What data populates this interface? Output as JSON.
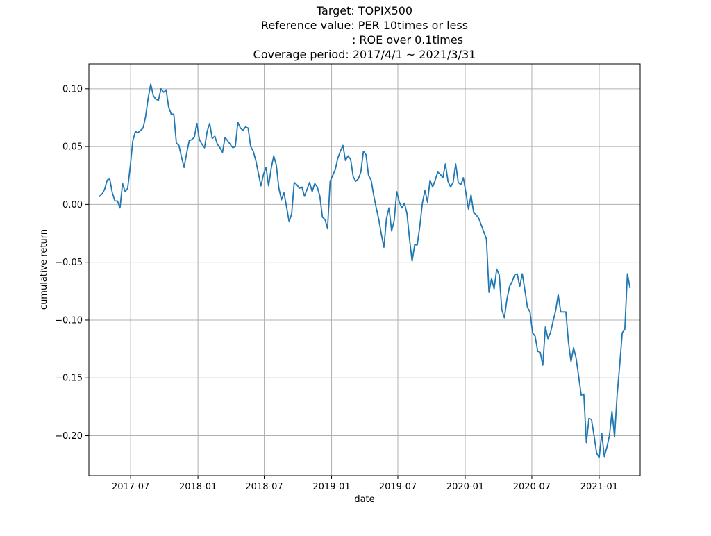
{
  "chart_data": {
    "type": "line",
    "title": "Target: TOPIX500\nReference value: PER 10times or less\n                         : ROE over 0.1times\nCoverage period: 2017/4/1 ~ 2021/3/31",
    "title_lines": [
      "Target: TOPIX500",
      "Reference value: PER 10times or less",
      ": ROE over 0.1times",
      "Coverage period: 2017/4/1 ~ 2021/3/31"
    ],
    "xlabel": "date",
    "ylabel": "cumulative return",
    "x_range": [
      "2017-03-09",
      "2021-04-23"
    ],
    "ylim": [
      -0.2345,
      0.1215
    ],
    "grid": true,
    "legend": "none",
    "x_ticks": [
      {
        "date": "2017-07-01",
        "label": "2017-07"
      },
      {
        "date": "2018-01-01",
        "label": "2018-01"
      },
      {
        "date": "2018-07-01",
        "label": "2018-07"
      },
      {
        "date": "2019-01-01",
        "label": "2019-01"
      },
      {
        "date": "2019-07-01",
        "label": "2019-07"
      },
      {
        "date": "2020-01-01",
        "label": "2020-01"
      },
      {
        "date": "2020-07-01",
        "label": "2020-07"
      },
      {
        "date": "2021-01-01",
        "label": "2021-01"
      }
    ],
    "y_ticks": [
      {
        "value": 0.1,
        "label": "0.10"
      },
      {
        "value": 0.05,
        "label": "0.05"
      },
      {
        "value": 0.0,
        "label": "0.00"
      },
      {
        "value": -0.05,
        "label": "−0.05"
      },
      {
        "value": -0.1,
        "label": "−0.10"
      },
      {
        "value": -0.15,
        "label": "−0.15"
      },
      {
        "value": -0.2,
        "label": "−0.20"
      }
    ],
    "colors": {
      "line": "#1f77b4",
      "grid": "#b0b0b0",
      "axes": "#000000"
    },
    "series": [
      {
        "x": [
          "2017-04-07",
          "2017-04-14",
          "2017-04-21",
          "2017-04-28",
          "2017-05-05",
          "2017-05-12",
          "2017-05-19",
          "2017-05-26",
          "2017-06-02",
          "2017-06-09",
          "2017-06-16",
          "2017-06-23",
          "2017-06-30",
          "2017-07-07",
          "2017-07-14",
          "2017-07-21",
          "2017-07-28",
          "2017-08-04",
          "2017-08-11",
          "2017-08-18",
          "2017-08-25",
          "2017-09-01",
          "2017-09-08",
          "2017-09-15",
          "2017-09-22",
          "2017-09-29",
          "2017-10-06",
          "2017-10-13",
          "2017-10-20",
          "2017-10-27",
          "2017-11-03",
          "2017-11-10",
          "2017-11-17",
          "2017-11-24",
          "2017-12-01",
          "2017-12-08",
          "2017-12-15",
          "2017-12-22",
          "2017-12-29",
          "2018-01-05",
          "2018-01-12",
          "2018-01-19",
          "2018-01-26",
          "2018-02-02",
          "2018-02-09",
          "2018-02-16",
          "2018-02-23",
          "2018-03-02",
          "2018-03-09",
          "2018-03-16",
          "2018-03-23",
          "2018-03-30",
          "2018-04-06",
          "2018-04-13",
          "2018-04-20",
          "2018-04-27",
          "2018-05-04",
          "2018-05-11",
          "2018-05-18",
          "2018-05-25",
          "2018-06-01",
          "2018-06-08",
          "2018-06-15",
          "2018-06-22",
          "2018-06-29",
          "2018-07-06",
          "2018-07-13",
          "2018-07-20",
          "2018-07-27",
          "2018-08-03",
          "2018-08-10",
          "2018-08-17",
          "2018-08-24",
          "2018-08-31",
          "2018-09-07",
          "2018-09-14",
          "2018-09-21",
          "2018-09-28",
          "2018-10-05",
          "2018-10-12",
          "2018-10-19",
          "2018-10-26",
          "2018-11-02",
          "2018-11-09",
          "2018-11-16",
          "2018-11-23",
          "2018-11-30",
          "2018-12-07",
          "2018-12-14",
          "2018-12-21",
          "2018-12-28",
          "2019-01-04",
          "2019-01-11",
          "2019-01-18",
          "2019-01-25",
          "2019-02-01",
          "2019-02-08",
          "2019-02-15",
          "2019-02-22",
          "2019-03-01",
          "2019-03-08",
          "2019-03-15",
          "2019-03-22",
          "2019-03-29",
          "2019-04-05",
          "2019-04-12",
          "2019-04-19",
          "2019-04-26",
          "2019-05-03",
          "2019-05-10",
          "2019-05-17",
          "2019-05-24",
          "2019-05-31",
          "2019-06-07",
          "2019-06-14",
          "2019-06-21",
          "2019-06-28",
          "2019-07-05",
          "2019-07-12",
          "2019-07-19",
          "2019-07-26",
          "2019-08-02",
          "2019-08-09",
          "2019-08-16",
          "2019-08-23",
          "2019-08-30",
          "2019-09-06",
          "2019-09-13",
          "2019-09-20",
          "2019-09-27",
          "2019-10-04",
          "2019-10-11",
          "2019-10-18",
          "2019-10-25",
          "2019-11-01",
          "2019-11-08",
          "2019-11-15",
          "2019-11-22",
          "2019-11-29",
          "2019-12-06",
          "2019-12-13",
          "2019-12-20",
          "2019-12-27",
          "2020-01-03",
          "2020-01-10",
          "2020-01-17",
          "2020-01-24",
          "2020-01-31",
          "2020-02-07",
          "2020-02-14",
          "2020-02-21",
          "2020-02-28",
          "2020-03-06",
          "2020-03-13",
          "2020-03-20",
          "2020-03-27",
          "2020-04-03",
          "2020-04-10",
          "2020-04-17",
          "2020-04-24",
          "2020-05-01",
          "2020-05-08",
          "2020-05-15",
          "2020-05-22",
          "2020-05-29",
          "2020-06-05",
          "2020-06-12",
          "2020-06-19",
          "2020-06-26",
          "2020-07-03",
          "2020-07-10",
          "2020-07-17",
          "2020-07-24",
          "2020-07-31",
          "2020-08-07",
          "2020-08-14",
          "2020-08-21",
          "2020-08-28",
          "2020-09-04",
          "2020-09-11",
          "2020-09-18",
          "2020-09-25",
          "2020-10-02",
          "2020-10-09",
          "2020-10-16",
          "2020-10-23",
          "2020-10-30",
          "2020-11-06",
          "2020-11-13",
          "2020-11-20",
          "2020-11-27",
          "2020-12-04",
          "2020-12-11",
          "2020-12-18",
          "2020-12-25",
          "2021-01-01",
          "2021-01-08",
          "2021-01-15",
          "2021-01-22",
          "2021-01-29",
          "2021-02-05",
          "2021-02-12",
          "2021-02-19",
          "2021-02-26",
          "2021-03-05",
          "2021-03-12",
          "2021-03-19",
          "2021-03-26"
        ],
        "y": [
          0.007,
          0.009,
          0.013,
          0.021,
          0.022,
          0.01,
          0.003,
          0.003,
          -0.003,
          0.018,
          0.011,
          0.014,
          0.033,
          0.055,
          0.063,
          0.062,
          0.064,
          0.066,
          0.076,
          0.092,
          0.104,
          0.094,
          0.091,
          0.09,
          0.1,
          0.097,
          0.099,
          0.084,
          0.078,
          0.078,
          0.053,
          0.051,
          0.041,
          0.032,
          0.044,
          0.055,
          0.056,
          0.058,
          0.07,
          0.056,
          0.052,
          0.049,
          0.063,
          0.07,
          0.057,
          0.059,
          0.052,
          0.049,
          0.045,
          0.058,
          0.055,
          0.052,
          0.049,
          0.05,
          0.071,
          0.066,
          0.064,
          0.067,
          0.066,
          0.05,
          0.046,
          0.038,
          0.027,
          0.016,
          0.026,
          0.032,
          0.016,
          0.031,
          0.042,
          0.034,
          0.014,
          0.004,
          0.01,
          -0.002,
          -0.015,
          -0.008,
          0.019,
          0.017,
          0.014,
          0.015,
          0.007,
          0.013,
          0.019,
          0.011,
          0.018,
          0.015,
          0.007,
          -0.011,
          -0.013,
          -0.021,
          0.02,
          0.025,
          0.03,
          0.04,
          0.046,
          0.051,
          0.038,
          0.042,
          0.039,
          0.024,
          0.02,
          0.022,
          0.028,
          0.046,
          0.043,
          0.025,
          0.021,
          0.008,
          -0.003,
          -0.013,
          -0.026,
          -0.037,
          -0.012,
          -0.003,
          -0.023,
          -0.014,
          0.011,
          0.002,
          -0.003,
          0.001,
          -0.008,
          -0.03,
          -0.049,
          -0.035,
          -0.035,
          -0.019,
          0.001,
          0.012,
          0.002,
          0.021,
          0.015,
          0.021,
          0.028,
          0.026,
          0.023,
          0.035,
          0.02,
          0.015,
          0.019,
          0.035,
          0.019,
          0.017,
          0.023,
          0.01,
          -0.004,
          0.008,
          -0.007,
          -0.009,
          -0.012,
          -0.018,
          -0.024,
          -0.03,
          -0.076,
          -0.064,
          -0.073,
          -0.056,
          -0.061,
          -0.091,
          -0.098,
          -0.082,
          -0.071,
          -0.067,
          -0.061,
          -0.06,
          -0.071,
          -0.06,
          -0.074,
          -0.089,
          -0.093,
          -0.111,
          -0.114,
          -0.127,
          -0.128,
          -0.139,
          -0.106,
          -0.116,
          -0.111,
          -0.101,
          -0.092,
          -0.078,
          -0.093,
          -0.093,
          -0.093,
          -0.119,
          -0.136,
          -0.124,
          -0.133,
          -0.149,
          -0.165,
          -0.164,
          -0.206,
          -0.185,
          -0.186,
          -0.2,
          -0.215,
          -0.219,
          -0.198,
          -0.218,
          -0.21,
          -0.2,
          -0.179,
          -0.201,
          -0.165,
          -0.139,
          -0.111,
          -0.108,
          -0.06,
          -0.072
        ]
      }
    ]
  }
}
